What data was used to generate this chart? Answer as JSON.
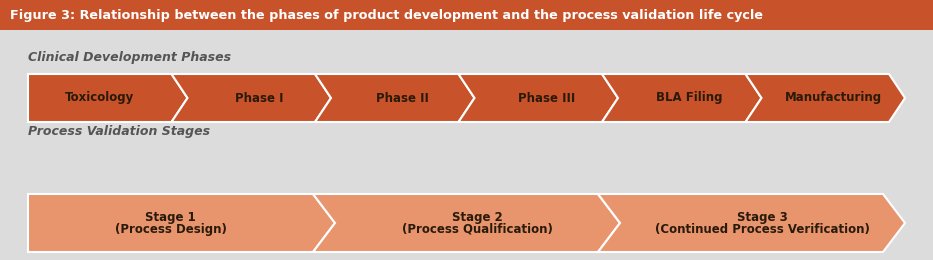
{
  "title": "Figure 3: Relationship between the phases of product development and the process validation life cycle",
  "title_bg": "#C8532A",
  "title_color": "#FFFFFF",
  "bg_color": "#DCDCDC",
  "row1_label": "Clinical Development Phases",
  "row2_label": "Process Validation Stages",
  "row1_items": [
    "Toxicology",
    "Phase I",
    "Phase II",
    "Phase III",
    "BLA Filing",
    "Manufacturing"
  ],
  "row2_items": [
    "Stage 1\n(Process Design)",
    "Stage 2\n(Process Qualification)",
    "Stage 3\n(Continued Process Verification)"
  ],
  "row1_color": "#C8532A",
  "row2_color": "#E8956E",
  "stroke_color": "#FFFFFF",
  "text_color": "#2A1A0A",
  "label_color": "#555555",
  "title_fontsize": 9.2,
  "label_fontsize": 9.0,
  "item_fontsize": 8.5
}
